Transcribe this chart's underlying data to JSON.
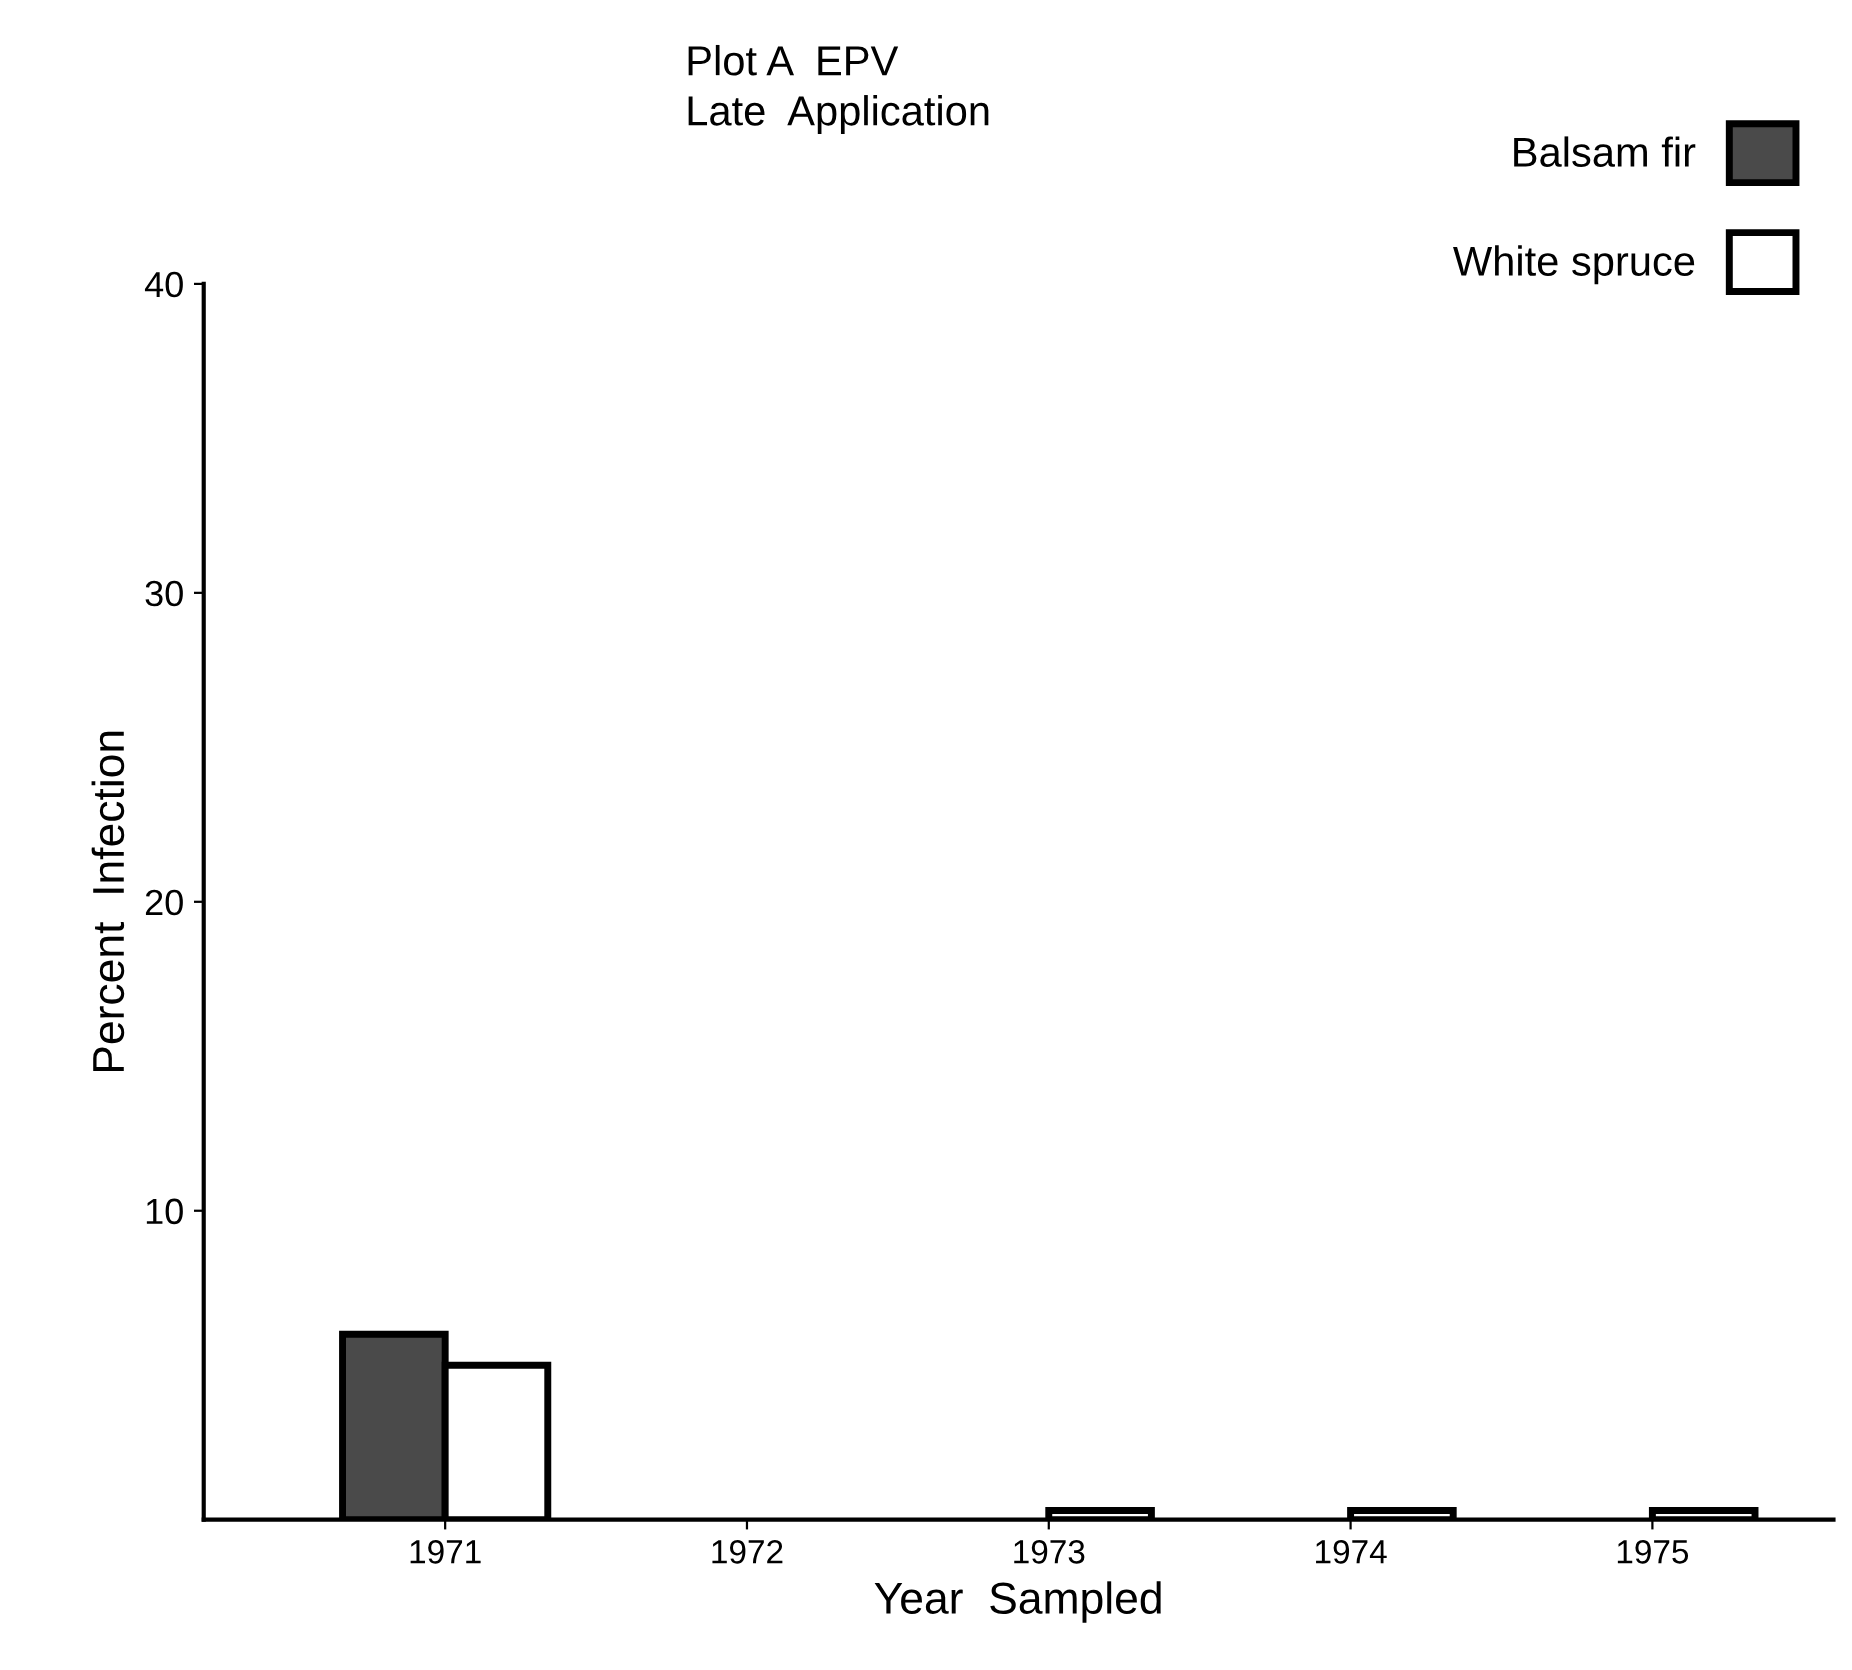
{
  "chart_data": {
    "type": "bar",
    "title": "Plot A  EPV",
    "subtitle": "Late  Application",
    "xlabel": "Year  Sampled",
    "ylabel": "Percent  Infection",
    "categories": [
      "1971",
      "1972",
      "1973",
      "1974",
      "1975"
    ],
    "series": [
      {
        "name": "Balsam fir",
        "color": "#4a4a4a",
        "values": [
          6,
          null,
          null,
          null,
          null
        ]
      },
      {
        "name": "White spruce",
        "color": "#ffffff",
        "values": [
          5,
          null,
          0.3,
          0.3,
          0.3
        ]
      }
    ],
    "ylim": [
      0,
      40
    ],
    "yticks": [
      10,
      20,
      30,
      40
    ],
    "grid": false,
    "legend": "top right"
  }
}
